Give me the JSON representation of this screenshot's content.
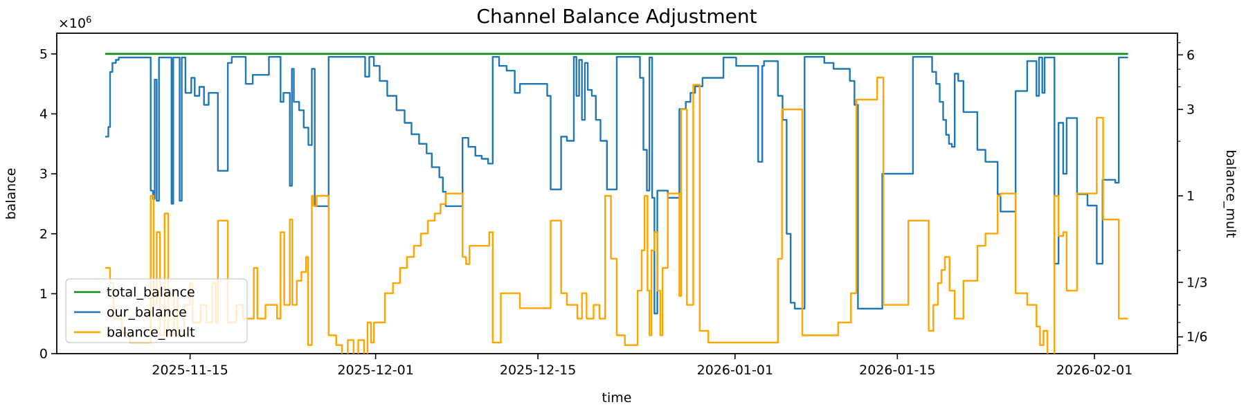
{
  "chart_data": {
    "type": "line",
    "title": "Channel Balance Adjustment",
    "xlabel": "time",
    "ylabel_left": "balance",
    "ylabel_right": "balance_mult",
    "offset_text_base": "×10",
    "offset_text_exp": "6",
    "x_axis": {
      "t_range": [
        0,
        96.66
      ],
      "ticks": [
        {
          "t": 11.5,
          "label": "2025-11-15"
        },
        {
          "t": 27.5,
          "label": "2025-12-01"
        },
        {
          "t": 41.5,
          "label": "2025-12-15"
        },
        {
          "t": 58.5,
          "label": "2026-01-01"
        },
        {
          "t": 72.5,
          "label": "2026-01-15"
        },
        {
          "t": 89.5,
          "label": "2026-02-01"
        }
      ]
    },
    "y_left": {
      "unit_multiplier": "1e6",
      "lim": [
        0,
        5.345
      ],
      "ticks": [
        {
          "v": 0,
          "label": "0"
        },
        {
          "v": 1,
          "label": "1"
        },
        {
          "v": 2,
          "label": "2"
        },
        {
          "v": 3,
          "label": "3"
        },
        {
          "v": 4,
          "label": "4"
        },
        {
          "v": 5,
          "label": "5"
        }
      ]
    },
    "y_right": {
      "scale": "log",
      "lim": [
        0.132,
        7.9
      ],
      "major_ticks": [
        {
          "v": 6,
          "label": "6"
        },
        {
          "v": 3,
          "label": "3"
        },
        {
          "v": 1,
          "label": "1"
        },
        {
          "v": 0.3333,
          "label": "1/3"
        },
        {
          "v": 0.1667,
          "label": "1/6"
        }
      ],
      "minor_ticks": [
        7,
        5,
        4,
        2,
        0.5,
        0.25,
        0.2,
        0.15
      ]
    },
    "legend": {
      "position": "lower left",
      "entries": [
        "total_balance",
        "our_balance",
        "balance_mult"
      ]
    },
    "series": [
      {
        "name": "total_balance",
        "color": "#128912",
        "axis": "left",
        "step": false,
        "points": [
          [
            4.18,
            5.0
          ],
          [
            92.4,
            5.0
          ]
        ]
      },
      {
        "name": "our_balance",
        "color": "#1f77b4",
        "axis": "left",
        "step": true,
        "points": [
          [
            4.18,
            3.62
          ],
          [
            4.45,
            3.78
          ],
          [
            4.6,
            4.7
          ],
          [
            4.8,
            4.85
          ],
          [
            5.1,
            4.9
          ],
          [
            5.35,
            4.94
          ],
          [
            8.1,
            2.72
          ],
          [
            8.3,
            2.58
          ],
          [
            8.45,
            4.57
          ],
          [
            8.62,
            2.55
          ],
          [
            8.82,
            4.94
          ],
          [
            9.9,
            2.5
          ],
          [
            10.05,
            4.94
          ],
          [
            10.6,
            2.55
          ],
          [
            10.78,
            4.94
          ],
          [
            11.1,
            4.35
          ],
          [
            11.6,
            4.6
          ],
          [
            11.9,
            4.3
          ],
          [
            12.3,
            4.45
          ],
          [
            12.7,
            4.15
          ],
          [
            13.1,
            4.35
          ],
          [
            13.9,
            3.05
          ],
          [
            14.75,
            4.85
          ],
          [
            15.1,
            4.95
          ],
          [
            16.3,
            4.5
          ],
          [
            16.9,
            4.65
          ],
          [
            18.3,
            4.95
          ],
          [
            19.3,
            4.2
          ],
          [
            19.55,
            4.35
          ],
          [
            20.1,
            2.8
          ],
          [
            20.28,
            4.75
          ],
          [
            20.45,
            4.2
          ],
          [
            20.9,
            4.06
          ],
          [
            21.3,
            3.77
          ],
          [
            21.7,
            3.48
          ],
          [
            22.0,
            4.75
          ],
          [
            22.25,
            2.46
          ],
          [
            23.45,
            4.95
          ],
          [
            26.6,
            4.62
          ],
          [
            26.95,
            4.95
          ],
          [
            27.35,
            4.8
          ],
          [
            27.85,
            4.55
          ],
          [
            28.5,
            4.3
          ],
          [
            29.3,
            4.06
          ],
          [
            30.0,
            3.85
          ],
          [
            30.6,
            3.66
          ],
          [
            31.25,
            3.5
          ],
          [
            31.9,
            3.34
          ],
          [
            32.35,
            3.11
          ],
          [
            33.0,
            2.94
          ],
          [
            33.3,
            2.7
          ],
          [
            33.55,
            2.46
          ],
          [
            35.0,
            3.6
          ],
          [
            35.5,
            3.45
          ],
          [
            36.1,
            3.3
          ],
          [
            36.65,
            3.25
          ],
          [
            37.2,
            3.17
          ],
          [
            37.6,
            4.95
          ],
          [
            38.15,
            4.8
          ],
          [
            38.8,
            4.72
          ],
          [
            39.5,
            4.35
          ],
          [
            39.95,
            4.5
          ],
          [
            42.3,
            4.3
          ],
          [
            42.6,
            2.74
          ],
          [
            43.5,
            3.62
          ],
          [
            44.0,
            3.55
          ],
          [
            44.6,
            4.95
          ],
          [
            44.82,
            4.3
          ],
          [
            45.05,
            4.9
          ],
          [
            45.3,
            3.9
          ],
          [
            45.55,
            4.85
          ],
          [
            45.8,
            4.4
          ],
          [
            46.15,
            4.3
          ],
          [
            46.5,
            3.9
          ],
          [
            46.9,
            3.55
          ],
          [
            47.45,
            2.74
          ],
          [
            48.3,
            4.95
          ],
          [
            50.3,
            4.6
          ],
          [
            50.6,
            3.4
          ],
          [
            50.9,
            2.72
          ],
          [
            51.12,
            4.94
          ],
          [
            51.35,
            2.6
          ],
          [
            51.55,
            0.67
          ],
          [
            51.8,
            2.72
          ],
          [
            52.7,
            2.6
          ],
          [
            53.7,
            4.08
          ],
          [
            54.25,
            4.2
          ],
          [
            54.65,
            4.35
          ],
          [
            55.05,
            4.46
          ],
          [
            55.7,
            4.6
          ],
          [
            57.5,
            4.94
          ],
          [
            58.6,
            4.8
          ],
          [
            60.5,
            3.2
          ],
          [
            60.85,
            4.8
          ],
          [
            61.0,
            4.88
          ],
          [
            62.2,
            4.3
          ],
          [
            62.6,
            3.9
          ],
          [
            62.95,
            2.0
          ],
          [
            63.3,
            0.85
          ],
          [
            63.65,
            0.75
          ],
          [
            64.5,
            4.95
          ],
          [
            66.2,
            4.85
          ],
          [
            67.0,
            4.75
          ],
          [
            68.4,
            4.55
          ],
          [
            68.8,
            4.15
          ],
          [
            69.1,
            0.75
          ],
          [
            71.2,
            3.0
          ],
          [
            73.85,
            4.95
          ],
          [
            75.5,
            4.7
          ],
          [
            75.85,
            4.5
          ],
          [
            76.15,
            4.2
          ],
          [
            76.45,
            3.9
          ],
          [
            76.7,
            3.65
          ],
          [
            76.95,
            3.5
          ],
          [
            77.2,
            3.45
          ],
          [
            77.45,
            4.67
          ],
          [
            77.75,
            4.55
          ],
          [
            78.2,
            4.03
          ],
          [
            79.4,
            3.4
          ],
          [
            80.1,
            3.2
          ],
          [
            81.15,
            2.66
          ],
          [
            81.4,
            2.37
          ],
          [
            82.7,
            4.38
          ],
          [
            83.7,
            4.88
          ],
          [
            84.5,
            4.3
          ],
          [
            84.72,
            4.94
          ],
          [
            85.0,
            4.35
          ],
          [
            85.2,
            4.94
          ],
          [
            86.05,
            1.5
          ],
          [
            86.4,
            3.85
          ],
          [
            86.8,
            3.0
          ],
          [
            87.1,
            3.93
          ],
          [
            88.0,
            2.66
          ],
          [
            88.9,
            2.47
          ],
          [
            89.7,
            1.5
          ],
          [
            90.2,
            2.9
          ],
          [
            91.3,
            2.85
          ],
          [
            91.6,
            4.94
          ],
          [
            92.4,
            4.94
          ]
        ]
      },
      {
        "name": "balance_mult",
        "color": "#ffa500",
        "axis": "right",
        "step": true,
        "points": [
          [
            4.18,
            0.4
          ],
          [
            4.6,
            0.33
          ],
          [
            4.9,
            0.21
          ],
          [
            5.6,
            0.175
          ],
          [
            6.3,
            0.155
          ],
          [
            8.1,
            1.0
          ],
          [
            8.35,
            0.25
          ],
          [
            8.62,
            0.63
          ],
          [
            8.9,
            0.17
          ],
          [
            9.3,
            0.8
          ],
          [
            9.62,
            0.17
          ],
          [
            10.1,
            0.3
          ],
          [
            10.42,
            0.17
          ],
          [
            11.0,
            0.25
          ],
          [
            11.5,
            0.33
          ],
          [
            11.72,
            0.2
          ],
          [
            12.4,
            0.25
          ],
          [
            12.9,
            0.2
          ],
          [
            13.4,
            0.33
          ],
          [
            13.72,
            0.2
          ],
          [
            13.9,
            0.73
          ],
          [
            14.75,
            0.2
          ],
          [
            15.5,
            0.25
          ],
          [
            16.05,
            0.21
          ],
          [
            17.0,
            0.4
          ],
          [
            17.3,
            0.21
          ],
          [
            18.0,
            0.25
          ],
          [
            19.0,
            0.21
          ],
          [
            19.3,
            0.63
          ],
          [
            19.62,
            0.25
          ],
          [
            20.1,
            0.74
          ],
          [
            20.32,
            0.25
          ],
          [
            20.7,
            0.34
          ],
          [
            21.1,
            0.38
          ],
          [
            21.5,
            0.46
          ],
          [
            21.68,
            0.15
          ],
          [
            22.0,
            1.0
          ],
          [
            22.15,
            0.88
          ],
          [
            22.42,
            1.0
          ],
          [
            23.45,
            0.17
          ],
          [
            24.1,
            0.15
          ],
          [
            24.6,
            0.13
          ],
          [
            25.1,
            0.16
          ],
          [
            25.6,
            0.13
          ],
          [
            26.0,
            0.16
          ],
          [
            26.5,
            0.13
          ],
          [
            26.8,
            0.2
          ],
          [
            27.1,
            0.155
          ],
          [
            27.35,
            0.2
          ],
          [
            28.3,
            0.29
          ],
          [
            29.0,
            0.33
          ],
          [
            29.6,
            0.4
          ],
          [
            30.2,
            0.46
          ],
          [
            30.8,
            0.53
          ],
          [
            31.4,
            0.62
          ],
          [
            32.0,
            0.73
          ],
          [
            32.6,
            0.8
          ],
          [
            33.1,
            0.9
          ],
          [
            33.55,
            1.03
          ],
          [
            35.0,
            0.46
          ],
          [
            35.3,
            0.42
          ],
          [
            35.6,
            0.53
          ],
          [
            37.3,
            0.63
          ],
          [
            37.6,
            0.155
          ],
          [
            38.3,
            0.29
          ],
          [
            39.95,
            0.24
          ],
          [
            42.6,
            0.73
          ],
          [
            43.5,
            0.29
          ],
          [
            44.0,
            0.25
          ],
          [
            44.9,
            0.21
          ],
          [
            45.3,
            0.29
          ],
          [
            45.7,
            0.21
          ],
          [
            46.3,
            0.25
          ],
          [
            46.8,
            0.21
          ],
          [
            47.3,
            1.0
          ],
          [
            47.8,
            0.45
          ],
          [
            48.3,
            0.17
          ],
          [
            49.0,
            0.15
          ],
          [
            50.1,
            0.3
          ],
          [
            50.45,
            0.5
          ],
          [
            50.7,
            1.0
          ],
          [
            50.95,
            0.3
          ],
          [
            51.12,
            0.17
          ],
          [
            51.3,
            0.5
          ],
          [
            51.55,
            0.63
          ],
          [
            51.8,
            0.3
          ],
          [
            52.05,
            0.17
          ],
          [
            52.25,
            0.4
          ],
          [
            52.7,
            1.03
          ],
          [
            53.7,
            0.28
          ],
          [
            53.85,
            3.0
          ],
          [
            54.35,
            0.25
          ],
          [
            54.9,
            4.1
          ],
          [
            55.45,
            0.18
          ],
          [
            56.2,
            0.155
          ],
          [
            62.2,
            0.45
          ],
          [
            62.55,
            3.0
          ],
          [
            64.3,
            0.17
          ],
          [
            67.4,
            0.2
          ],
          [
            68.5,
            0.29
          ],
          [
            68.97,
            3.4
          ],
          [
            70.76,
            4.5
          ],
          [
            71.3,
            0.25
          ],
          [
            73.45,
            0.73
          ],
          [
            75.2,
            0.18
          ],
          [
            75.6,
            0.25
          ],
          [
            76.0,
            0.33
          ],
          [
            76.3,
            0.39
          ],
          [
            76.6,
            0.46
          ],
          [
            77.0,
            0.3
          ],
          [
            77.45,
            0.21
          ],
          [
            78.2,
            0.34
          ],
          [
            79.4,
            0.53
          ],
          [
            80.1,
            0.62
          ],
          [
            81.15,
            1.0
          ],
          [
            81.4,
            1.03
          ],
          [
            82.7,
            0.29
          ],
          [
            83.7,
            0.25
          ],
          [
            84.5,
            0.19
          ],
          [
            84.8,
            0.15
          ],
          [
            85.1,
            0.18
          ],
          [
            85.45,
            0.13
          ],
          [
            86.05,
            1.0
          ],
          [
            86.4,
            0.6
          ],
          [
            86.8,
            0.63
          ],
          [
            87.1,
            0.3
          ],
          [
            88.0,
            1.03
          ],
          [
            89.7,
            2.7
          ],
          [
            90.25,
            0.74
          ],
          [
            91.6,
            0.21
          ],
          [
            92.4,
            0.21
          ]
        ]
      }
    ]
  }
}
